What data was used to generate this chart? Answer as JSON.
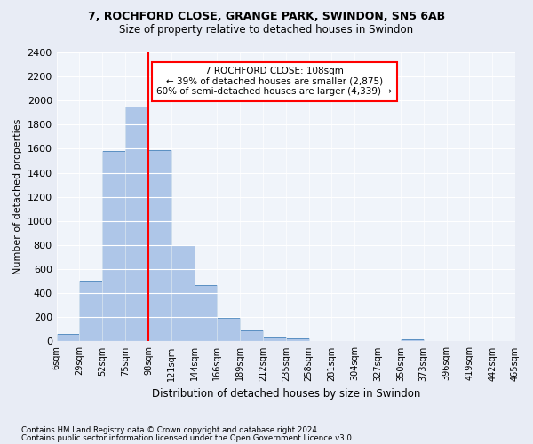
{
  "title1": "7, ROCHFORD CLOSE, GRANGE PARK, SWINDON, SN5 6AB",
  "title2": "Size of property relative to detached houses in Swindon",
  "xlabel": "Distribution of detached houses by size in Swindon",
  "ylabel": "Number of detached properties",
  "bin_labels": [
    "6sqm",
    "29sqm",
    "52sqm",
    "75sqm",
    "98sqm",
    "121sqm",
    "144sqm",
    "166sqm",
    "189sqm",
    "212sqm",
    "235sqm",
    "258sqm",
    "281sqm",
    "304sqm",
    "327sqm",
    "350sqm",
    "373sqm",
    "396sqm",
    "419sqm",
    "442sqm",
    "465sqm"
  ],
  "bar_values": [
    60,
    500,
    1580,
    1950,
    1590,
    800,
    470,
    195,
    95,
    35,
    25,
    0,
    0,
    0,
    0,
    20,
    0,
    0,
    0,
    0
  ],
  "bar_color": "#aec6e8",
  "bar_edge_color": "#5a8fc2",
  "vline_x": 4.0,
  "vline_color": "red",
  "annotation_text": "7 ROCHFORD CLOSE: 108sqm\n← 39% of detached houses are smaller (2,875)\n60% of semi-detached houses are larger (4,339) →",
  "annotation_box_color": "white",
  "annotation_box_edge": "red",
  "ylim": [
    0,
    2400
  ],
  "yticks": [
    0,
    200,
    400,
    600,
    800,
    1000,
    1200,
    1400,
    1600,
    1800,
    2000,
    2200,
    2400
  ],
  "footer1": "Contains HM Land Registry data © Crown copyright and database right 2024.",
  "footer2": "Contains public sector information licensed under the Open Government Licence v3.0.",
  "bg_color": "#e8ecf5",
  "plot_bg_color": "#f0f4fa"
}
